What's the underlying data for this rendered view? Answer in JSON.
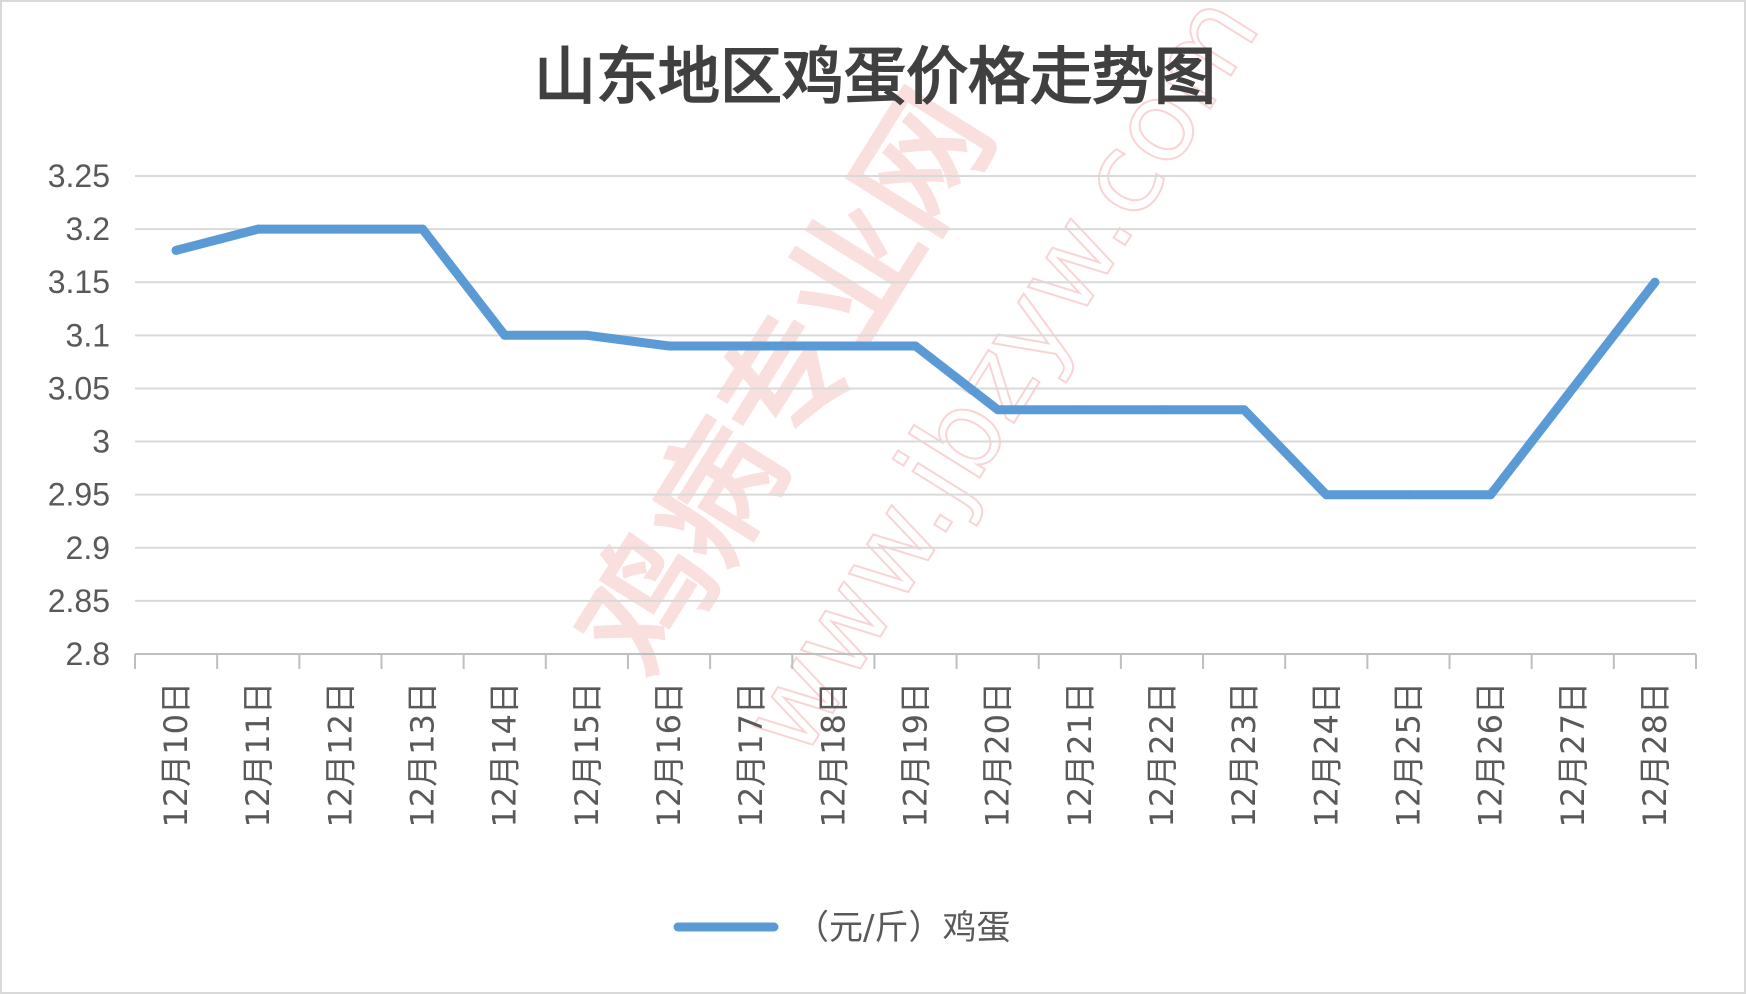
{
  "colors": {
    "line": "#5B9BD5",
    "grid": "#d9d9d9",
    "axis": "#bfbfbf",
    "title": "#404040",
    "tick": "#595959",
    "watermark": "#f4b9b9"
  },
  "watermark": {
    "cn": "鸡病专业网",
    "url": "www.jbzyw.com"
  },
  "chart_data": {
    "type": "line",
    "title": "山东地区鸡蛋价格走势图",
    "xlabel": "",
    "ylabel": "",
    "ylim": [
      2.8,
      3.25
    ],
    "y_ticks": [
      "3.25",
      "3.2",
      "3.15",
      "3.1",
      "3.05",
      "3",
      "2.95",
      "2.9",
      "2.85",
      "2.8"
    ],
    "grid": true,
    "legend_position": "bottom",
    "categories": [
      "12月10日",
      "12月11日",
      "12月12日",
      "12月13日",
      "12月14日",
      "12月15日",
      "12月16日",
      "12月17日",
      "12月18日",
      "12月19日",
      "12月20日",
      "12月21日",
      "12月22日",
      "12月23日",
      "12月24日",
      "12月25日",
      "12月26日",
      "12月27日",
      "12月28日"
    ],
    "series": [
      {
        "name": "（元/斤）鸡蛋",
        "values": [
          3.18,
          3.2,
          3.2,
          3.2,
          3.1,
          3.1,
          3.09,
          3.09,
          3.09,
          3.09,
          3.03,
          3.03,
          3.03,
          3.03,
          2.95,
          2.95,
          2.95,
          3.05,
          3.15
        ]
      }
    ]
  }
}
